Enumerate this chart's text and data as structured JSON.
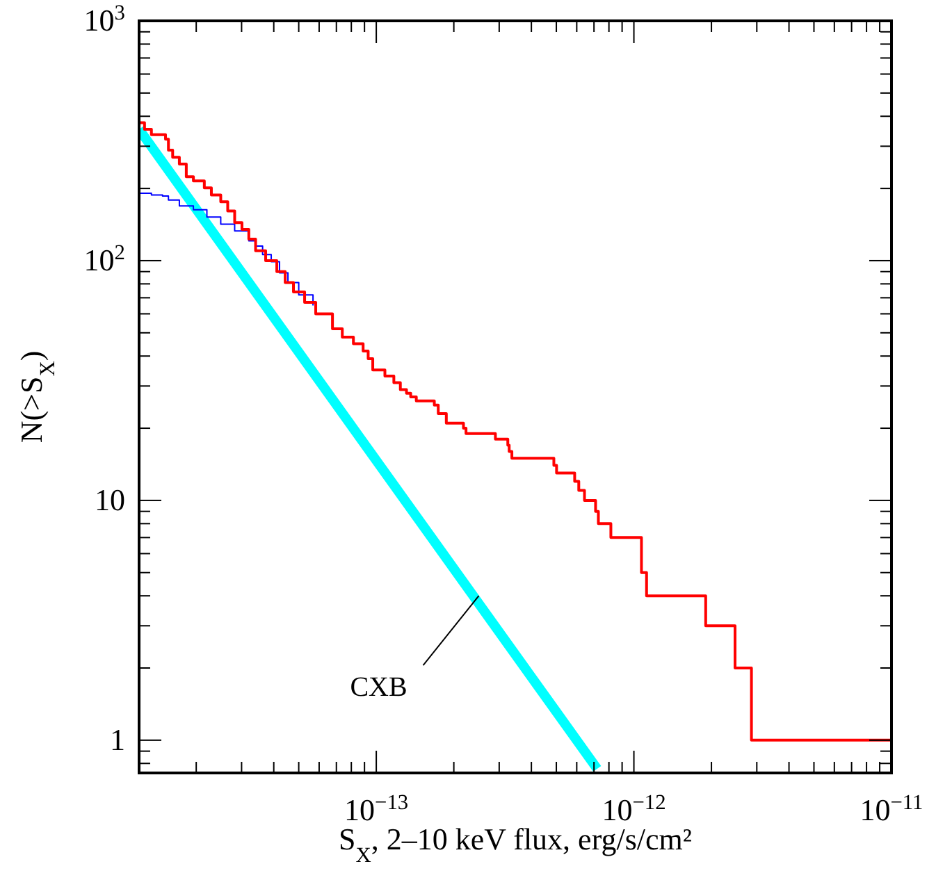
{
  "chart_data": {
    "type": "step",
    "xlabel": "S$_{X}$, 2–10 keV flux, erg/s/cm²",
    "ylabel": "N(>S$_{X}$)",
    "log": "xy",
    "grid": false,
    "xlim": [
      1.2e-14,
      1e-11
    ],
    "ylim": [
      0.73,
      1000
    ],
    "xticks": [
      {
        "value": 2e-14,
        "label": null
      },
      {
        "value": 3e-14,
        "label": null
      },
      {
        "value": 4e-14,
        "label": null
      },
      {
        "value": 5e-14,
        "label": null
      },
      {
        "value": 6e-14,
        "label": null
      },
      {
        "value": 7e-14,
        "label": null
      },
      {
        "value": 8e-14,
        "label": null
      },
      {
        "value": 9e-14,
        "label": null
      },
      {
        "value": 1e-13,
        "label": "10$^{−13}$"
      },
      {
        "value": 2e-13,
        "label": null
      },
      {
        "value": 3e-13,
        "label": null
      },
      {
        "value": 4e-13,
        "label": null
      },
      {
        "value": 5e-13,
        "label": null
      },
      {
        "value": 6e-13,
        "label": null
      },
      {
        "value": 7e-13,
        "label": null
      },
      {
        "value": 8e-13,
        "label": null
      },
      {
        "value": 9e-13,
        "label": null
      },
      {
        "value": 1e-12,
        "label": "10$^{−12}$"
      },
      {
        "value": 2e-12,
        "label": null
      },
      {
        "value": 3e-12,
        "label": null
      },
      {
        "value": 4e-12,
        "label": null
      },
      {
        "value": 5e-12,
        "label": null
      },
      {
        "value": 6e-12,
        "label": null
      },
      {
        "value": 7e-12,
        "label": null
      },
      {
        "value": 8e-12,
        "label": null
      },
      {
        "value": 9e-12,
        "label": null
      },
      {
        "value": 1e-11,
        "label": "10$^{−11}$"
      }
    ],
    "yticks": [
      {
        "value": 0.8,
        "label": null
      },
      {
        "value": 0.9,
        "label": null
      },
      1,
      {
        "value": 2,
        "label": null
      },
      {
        "value": 3,
        "label": null
      },
      {
        "value": 4,
        "label": null
      },
      {
        "value": 5,
        "label": null
      },
      {
        "value": 6,
        "label": null
      },
      {
        "value": 7,
        "label": null
      },
      {
        "value": 8,
        "label": null
      },
      {
        "value": 9,
        "label": null
      },
      10,
      {
        "value": 20,
        "label": null
      },
      {
        "value": 30,
        "label": null
      },
      {
        "value": 40,
        "label": null
      },
      {
        "value": 50,
        "label": null
      },
      {
        "value": 60,
        "label": null
      },
      {
        "value": 70,
        "label": null
      },
      {
        "value": 80,
        "label": null
      },
      {
        "value": 90,
        "label": null
      },
      {
        "value": 100,
        "label": "10$^{2}$"
      },
      {
        "value": 200,
        "label": null
      },
      {
        "value": 300,
        "label": null
      },
      {
        "value": 400,
        "label": null
      },
      {
        "value": 500,
        "label": null
      },
      {
        "value": 600,
        "label": null
      },
      {
        "value": 700,
        "label": null
      },
      {
        "value": 800,
        "label": null
      },
      {
        "value": 900,
        "label": null
      },
      {
        "value": 1000,
        "label": "10$^{3}$"
      }
    ],
    "series": [
      {
        "type": "line",
        "color": "#00ffff",
        "x": [
          1.2e-14,
          7.2e-13
        ],
        "values": [
          353,
          0.76
        ]
      },
      {
        "type": "step",
        "color": "#0000ff",
        "x": [
          1.2e-14,
          1.34e-14,
          1.48e-14,
          1.56e-14,
          1.72e-14,
          1.95e-14,
          2.2e-14,
          2.49e-14,
          2.82e-14,
          3.2e-14,
          3.4e-14,
          3.62e-14,
          3.91e-14,
          4.21e-14,
          4.54e-14,
          5e-14,
          5.68e-14
        ],
        "values": [
          191,
          188,
          186,
          179,
          169,
          163,
          152,
          142,
          133,
          121,
          115,
          106,
          99,
          89,
          81,
          72,
          65
        ]
      },
      {
        "color": "#ff0000",
        "x": [
          1.2e-14,
          1.26e-14,
          1.34e-14,
          1.52e-14,
          1.56e-14,
          1.62e-14,
          1.72e-14,
          1.83e-14,
          1.95e-14,
          2.15e-14,
          2.29e-14,
          2.49e-14,
          2.65e-14,
          2.82e-14,
          3.01e-14,
          3.2e-14,
          3.4e-14,
          3.72e-14,
          4.11e-14,
          4.43e-14,
          4.77e-14,
          5.27e-14,
          5.82e-14,
          6.76e-14,
          7.38e-14,
          8.15e-14,
          8.89e-14,
          9.3e-14,
          9.69e-14,
          1.08e-13,
          1.17e-13,
          1.24e-13,
          1.31e-13,
          1.36e-13,
          1.43e-13,
          1.68e-13,
          1.74e-13,
          1.87e-13,
          2.18e-13,
          2.23e-13,
          2.9e-13,
          3.24e-13,
          3.28e-13,
          3.36e-13,
          4.89e-13,
          5.01e-13,
          5.89e-13,
          6.11e-13,
          6.43e-13,
          7.1e-13,
          7.28e-13,
          8.14e-13,
          1.07e-12,
          1.12e-12,
          1.9e-12,
          2.47e-12,
          2.86e-12,
          1e-11
        ],
        "values": [
          376,
          353,
          335,
          321,
          289,
          270,
          253,
          224,
          215,
          201,
          188,
          176,
          161,
          144,
          135,
          123,
          110,
          100,
          90,
          81,
          74,
          67,
          60,
          52,
          48,
          45,
          42,
          39,
          35,
          33,
          31,
          29,
          28,
          27,
          26,
          25,
          23,
          21,
          20,
          19,
          18,
          17,
          16,
          15,
          14,
          13,
          12,
          11,
          10,
          9,
          8,
          7,
          5,
          4,
          3,
          2,
          1,
          1
        ]
      }
    ],
    "annotations": [
      {
        "text": "CXB",
        "x": 2.5e-13,
        "y": 4
      }
    ]
  }
}
